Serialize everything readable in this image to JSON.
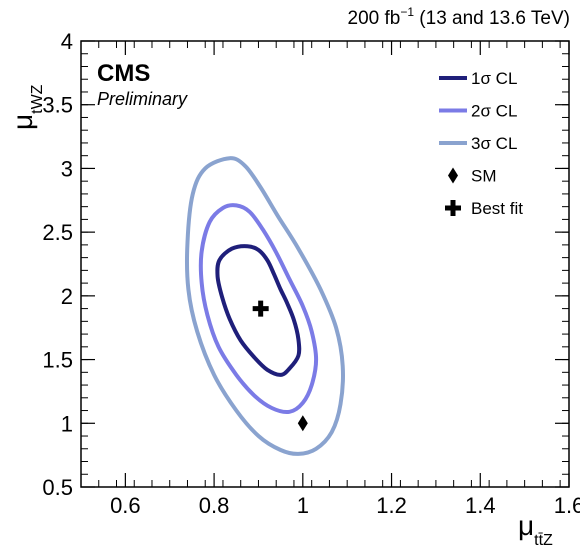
{
  "header": {
    "lumi_value": "200 fb",
    "lumi_exponent": "−1",
    "energy": " (13 and 13.6 TeV)"
  },
  "labels": {
    "experiment": "CMS",
    "status": "Preliminary"
  },
  "colors": {
    "sigma1": "#1f1f7a",
    "sigma2": "#7b7be6",
    "sigma3": "#8aa3cf",
    "markers": "#000000"
  },
  "chart_data": {
    "type": "contour",
    "xlabel": "μ",
    "xlabel_sub": "tt̄Z",
    "ylabel": "μ",
    "ylabel_sub": "tWZ",
    "xlim": [
      0.5,
      1.6
    ],
    "ylim": [
      0.5,
      4.0
    ],
    "xticks": [
      0.6,
      0.8,
      1.0,
      1.2,
      1.4,
      1.6
    ],
    "xtick_labels": [
      "0.6",
      "0.8",
      "1",
      "1.2",
      "1.4",
      "1.6"
    ],
    "yticks": [
      0.5,
      1.0,
      1.5,
      2.0,
      2.5,
      3.0,
      3.5,
      4.0
    ],
    "ytick_labels": [
      "0.5",
      "1",
      "1.5",
      "2",
      "2.5",
      "3",
      "3.5",
      "4"
    ],
    "grid": false,
    "legend_position": "top-right",
    "legend": [
      {
        "label": "1σ CL",
        "kind": "line",
        "color_key": "sigma1"
      },
      {
        "label": "2σ CL",
        "kind": "line",
        "color_key": "sigma2"
      },
      {
        "label": "3σ CL",
        "kind": "line",
        "color_key": "sigma3"
      },
      {
        "label": "SM",
        "kind": "diamond"
      },
      {
        "label": "Best fit",
        "kind": "cross"
      }
    ],
    "contours": [
      {
        "name": "1σ CL",
        "color_key": "sigma1",
        "points": [
          [
            0.875,
            2.39
          ],
          [
            0.9,
            2.36
          ],
          [
            0.92,
            2.28
          ],
          [
            0.935,
            2.17
          ],
          [
            0.95,
            2.05
          ],
          [
            0.965,
            1.94
          ],
          [
            0.98,
            1.81
          ],
          [
            0.99,
            1.66
          ],
          [
            0.99,
            1.53
          ],
          [
            0.97,
            1.43
          ],
          [
            0.95,
            1.38
          ],
          [
            0.92,
            1.42
          ],
          [
            0.89,
            1.52
          ],
          [
            0.86,
            1.65
          ],
          [
            0.835,
            1.82
          ],
          [
            0.818,
            1.99
          ],
          [
            0.808,
            2.15
          ],
          [
            0.812,
            2.28
          ],
          [
            0.84,
            2.37
          ],
          [
            0.875,
            2.39
          ]
        ]
      },
      {
        "name": "2σ CL",
        "color_key": "sigma2",
        "points": [
          [
            0.85,
            2.71
          ],
          [
            0.88,
            2.66
          ],
          [
            0.91,
            2.52
          ],
          [
            0.94,
            2.34
          ],
          [
            0.97,
            2.13
          ],
          [
            1.0,
            1.92
          ],
          [
            1.02,
            1.72
          ],
          [
            1.03,
            1.5
          ],
          [
            1.02,
            1.3
          ],
          [
            1.0,
            1.16
          ],
          [
            0.97,
            1.09
          ],
          [
            0.93,
            1.12
          ],
          [
            0.89,
            1.22
          ],
          [
            0.85,
            1.38
          ],
          [
            0.81,
            1.6
          ],
          [
            0.785,
            1.85
          ],
          [
            0.772,
            2.1
          ],
          [
            0.772,
            2.35
          ],
          [
            0.79,
            2.58
          ],
          [
            0.82,
            2.69
          ],
          [
            0.85,
            2.71
          ]
        ]
      },
      {
        "name": "3σ CL",
        "color_key": "sigma3",
        "points": [
          [
            0.835,
            3.08
          ],
          [
            0.87,
            3.02
          ],
          [
            0.905,
            2.85
          ],
          [
            0.945,
            2.62
          ],
          [
            0.99,
            2.37
          ],
          [
            1.04,
            2.05
          ],
          [
            1.075,
            1.75
          ],
          [
            1.09,
            1.45
          ],
          [
            1.085,
            1.15
          ],
          [
            1.065,
            0.93
          ],
          [
            1.03,
            0.8
          ],
          [
            0.99,
            0.76
          ],
          [
            0.95,
            0.79
          ],
          [
            0.9,
            0.9
          ],
          [
            0.85,
            1.1
          ],
          [
            0.8,
            1.38
          ],
          [
            0.762,
            1.72
          ],
          [
            0.742,
            2.05
          ],
          [
            0.74,
            2.42
          ],
          [
            0.752,
            2.8
          ],
          [
            0.78,
            3.0
          ],
          [
            0.835,
            3.08
          ]
        ]
      }
    ],
    "sm_point": {
      "x": 1.0,
      "y": 1.0
    },
    "best_fit": {
      "x": 0.905,
      "y": 1.9
    }
  }
}
